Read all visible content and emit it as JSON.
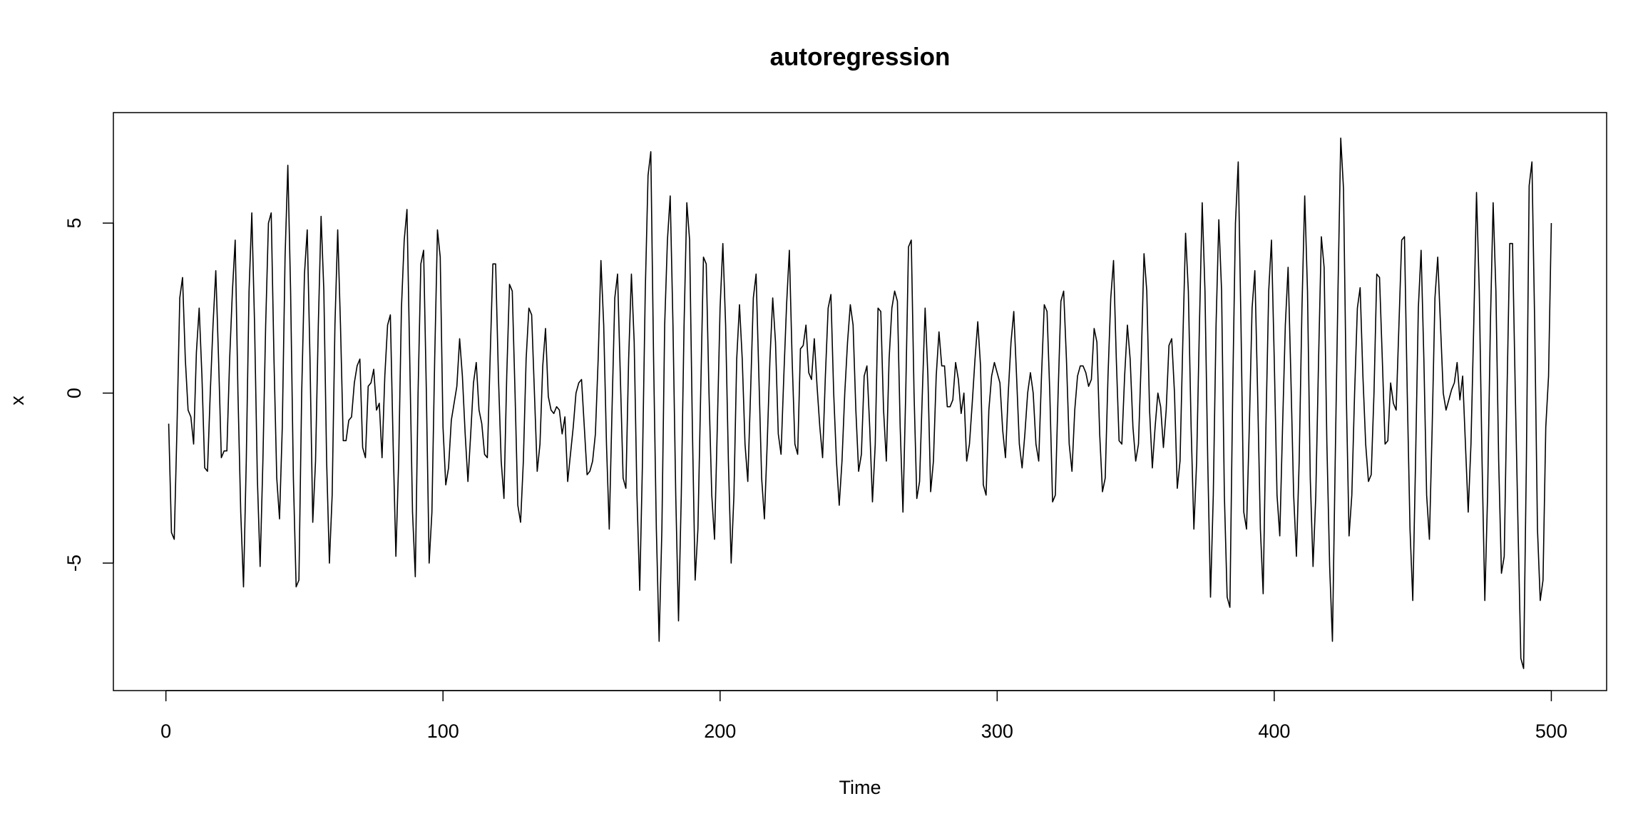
{
  "chart_data": {
    "type": "line",
    "title": "autoregression",
    "x_label": "Time",
    "y_label": "x",
    "xlim": [
      -18.96,
      519.96
    ],
    "ylim": [
      -8.75,
      8.25
    ],
    "xticks": [
      0,
      100,
      200,
      300,
      400,
      500
    ],
    "yticks": [
      -5,
      0,
      5
    ],
    "x": [
      1,
      2,
      3,
      4,
      5,
      6,
      7,
      8,
      9,
      10,
      11,
      12,
      13,
      14,
      15,
      16,
      17,
      18,
      19,
      20,
      21,
      22,
      23,
      24,
      25,
      26,
      27,
      28,
      29,
      30,
      31,
      32,
      33,
      34,
      35,
      36,
      37,
      38,
      39,
      40,
      41,
      42,
      43,
      44,
      45,
      46,
      47,
      48,
      49,
      50,
      51,
      52,
      53,
      54,
      55,
      56,
      57,
      58,
      59,
      60,
      61,
      62,
      63,
      64,
      65,
      66,
      67,
      68,
      69,
      70,
      71,
      72,
      73,
      74,
      75,
      76,
      77,
      78,
      79,
      80,
      81,
      82,
      83,
      84,
      85,
      86,
      87,
      88,
      89,
      90,
      91,
      92,
      93,
      94,
      95,
      96,
      97,
      98,
      99,
      100,
      101,
      102,
      103,
      104,
      105,
      106,
      107,
      108,
      109,
      110,
      111,
      112,
      113,
      114,
      115,
      116,
      117,
      118,
      119,
      120,
      121,
      122,
      123,
      124,
      125,
      126,
      127,
      128,
      129,
      130,
      131,
      132,
      133,
      134,
      135,
      136,
      137,
      138,
      139,
      140,
      141,
      142,
      143,
      144,
      145,
      146,
      147,
      148,
      149,
      150,
      151,
      152,
      153,
      154,
      155,
      156,
      157,
      158,
      159,
      160,
      161,
      162,
      163,
      164,
      165,
      166,
      167,
      168,
      169,
      170,
      171,
      172,
      173,
      174,
      175,
      176,
      177,
      178,
      179,
      180,
      181,
      182,
      183,
      184,
      185,
      186,
      187,
      188,
      189,
      190,
      191,
      192,
      193,
      194,
      195,
      196,
      197,
      198,
      199,
      200,
      201,
      202,
      203,
      204,
      205,
      206,
      207,
      208,
      209,
      210,
      211,
      212,
      213,
      214,
      215,
      216,
      217,
      218,
      219,
      220,
      221,
      222,
      223,
      224,
      225,
      226,
      227,
      228,
      229,
      230,
      231,
      232,
      233,
      234,
      235,
      236,
      237,
      238,
      239,
      240,
      241,
      242,
      243,
      244,
      245,
      246,
      247,
      248,
      249,
      250,
      251,
      252,
      253,
      254,
      255,
      256,
      257,
      258,
      259,
      260,
      261,
      262,
      263,
      264,
      265,
      266,
      267,
      268,
      269,
      270,
      271,
      272,
      273,
      274,
      275,
      276,
      277,
      278,
      279,
      280,
      281,
      282,
      283,
      284,
      285,
      286,
      287,
      288,
      289,
      290,
      291,
      292,
      293,
      294,
      295,
      296,
      297,
      298,
      299,
      300,
      301,
      302,
      303,
      304,
      305,
      306,
      307,
      308,
      309,
      310,
      311,
      312,
      313,
      314,
      315,
      316,
      317,
      318,
      319,
      320,
      321,
      322,
      323,
      324,
      325,
      326,
      327,
      328,
      329,
      330,
      331,
      332,
      333,
      334,
      335,
      336,
      337,
      338,
      339,
      340,
      341,
      342,
      343,
      344,
      345,
      346,
      347,
      348,
      349,
      350,
      351,
      352,
      353,
      354,
      355,
      356,
      357,
      358,
      359,
      360,
      361,
      362,
      363,
      364,
      365,
      366,
      367,
      368,
      369,
      370,
      371,
      372,
      373,
      374,
      375,
      376,
      377,
      378,
      379,
      380,
      381,
      382,
      383,
      384,
      385,
      386,
      387,
      388,
      389,
      390,
      391,
      392,
      393,
      394,
      395,
      396,
      397,
      398,
      399,
      400,
      401,
      402,
      403,
      404,
      405,
      406,
      407,
      408,
      409,
      410,
      411,
      412,
      413,
      414,
      415,
      416,
      417,
      418,
      419,
      420,
      421,
      422,
      423,
      424,
      425,
      426,
      427,
      428,
      429,
      430,
      431,
      432,
      433,
      434,
      435,
      436,
      437,
      438,
      439,
      440,
      441,
      442,
      443,
      444,
      445,
      446,
      447,
      448,
      449,
      450,
      451,
      452,
      453,
      454,
      455,
      456,
      457,
      458,
      459,
      460,
      461,
      462,
      463,
      464,
      465,
      466,
      467,
      468,
      469,
      470,
      471,
      472,
      473,
      474,
      475,
      476,
      477,
      478,
      479,
      480,
      481,
      482,
      483,
      484,
      485,
      486,
      487,
      488,
      489,
      490,
      491,
      492,
      493,
      494,
      495,
      496,
      497,
      498,
      499,
      500
    ],
    "series": [
      {
        "color": "#000000",
        "values": [
          -0.9,
          -4.1,
          -4.3,
          -1,
          2.8,
          3.4,
          1,
          -0.5,
          -0.7,
          -1.5,
          1.2,
          2.5,
          0.5,
          -2.2,
          -2.3,
          0,
          2,
          3.6,
          1,
          -1.9,
          -1.7,
          -1.7,
          1,
          3,
          4.5,
          0,
          -3.5,
          -5.7,
          -2,
          3,
          5.3,
          2,
          -2.5,
          -5.1,
          -2,
          2,
          5,
          5.3,
          1,
          -2.5,
          -3.7,
          -1,
          4,
          6.7,
          3,
          -2.5,
          -5.7,
          -5.5,
          0,
          3.5,
          4.8,
          1,
          -3.8,
          -2,
          2,
          5.2,
          3,
          -2,
          -5,
          -3,
          2,
          4.8,
          2,
          -1.4,
          -1.4,
          -0.8,
          -0.7,
          0.3,
          0.8,
          1,
          -1.6,
          -1.9,
          0.2,
          0.3,
          0.7,
          -0.5,
          -0.3,
          -1.9,
          0.5,
          2,
          2.3,
          -1.5,
          -4.8,
          -2,
          2.5,
          4.5,
          5.4,
          1,
          -3.5,
          -5.4,
          0,
          3.8,
          4.2,
          0,
          -5,
          -3.5,
          1,
          4.8,
          4,
          -1,
          -2.7,
          -2.2,
          -0.8,
          -0.3,
          0.2,
          1.6,
          0.5,
          -1.2,
          -2.6,
          -1.2,
          0.3,
          0.9,
          -0.5,
          -0.9,
          -1.8,
          -1.9,
          1,
          3.8,
          3.8,
          0.5,
          -2,
          -3.1,
          0.5,
          3.2,
          3,
          0,
          -3.3,
          -3.8,
          -2,
          1,
          2.5,
          2.3,
          0,
          -2.3,
          -1.5,
          0.8,
          1.9,
          -0.1,
          -0.5,
          -0.6,
          -0.4,
          -0.5,
          -1.2,
          -0.7,
          -2.6,
          -1.8,
          -1,
          0,
          0.3,
          0.4,
          -1,
          -2.4,
          -2.3,
          -2,
          -1.2,
          1,
          3.9,
          2,
          -1.5,
          -4,
          -0.5,
          2.8,
          3.5,
          0.5,
          -2.5,
          -2.8,
          1,
          3.5,
          1.5,
          -3,
          -5.8,
          -2,
          3,
          6.4,
          7.1,
          1,
          -4,
          -7.3,
          -4,
          2,
          4.5,
          5.8,
          2,
          -3,
          -6.7,
          -3,
          2,
          5.6,
          4.5,
          -1,
          -5.5,
          -4,
          0,
          4,
          3.8,
          0,
          -3,
          -4.3,
          -1,
          2.5,
          4.4,
          2,
          -2,
          -5,
          -3,
          1,
          2.6,
          1,
          -1.5,
          -2.6,
          0,
          2.8,
          3.5,
          0.5,
          -2.5,
          -3.7,
          -1.5,
          1,
          2.8,
          1.5,
          -1.2,
          -1.8,
          0.5,
          2.6,
          4.2,
          1,
          -1.5,
          -1.8,
          1.3,
          1.4,
          2,
          0.6,
          0.4,
          1.6,
          0.2,
          -1,
          -1.9,
          0.5,
          2.5,
          2.9,
          0,
          -2,
          -3.3,
          -2,
          0,
          1.5,
          2.6,
          2,
          -0.5,
          -2.3,
          -1.8,
          0.5,
          0.8,
          -1,
          -3.2,
          -1.5,
          2.5,
          2.4,
          -0.5,
          -2,
          1,
          2.5,
          3,
          2.7,
          -1,
          -3.5,
          0,
          4.3,
          4.5,
          0,
          -3.1,
          -2.6,
          0,
          2.5,
          0.5,
          -2.9,
          -2,
          0.5,
          1.8,
          0.8,
          0.8,
          -0.4,
          -0.4,
          -0.2,
          0.9,
          0.4,
          -0.6,
          0,
          -2,
          -1.5,
          -0.3,
          1,
          2.1,
          0.8,
          -2.7,
          -3,
          -0.5,
          0.5,
          0.9,
          0.6,
          0.3,
          -1.1,
          -1.9,
          0,
          1.5,
          2.4,
          0.5,
          -1.5,
          -2.2,
          -1.2,
          0,
          0.6,
          0,
          -1.5,
          -2,
          0.5,
          2.6,
          2.4,
          0,
          -3.2,
          -3,
          0,
          2.7,
          3,
          1,
          -1.5,
          -2.3,
          -0.5,
          0.5,
          0.8,
          0.8,
          0.6,
          0.2,
          0.4,
          1.9,
          1.5,
          -1.2,
          -2.9,
          -2.5,
          0.5,
          2.8,
          3.9,
          1,
          -1.4,
          -1.5,
          0.5,
          2,
          1,
          -1,
          -2,
          -1.5,
          1,
          4.1,
          3,
          -0.5,
          -2.2,
          -1,
          0,
          -0.4,
          -1.6,
          -0.5,
          1.4,
          1.6,
          0,
          -2.8,
          -2,
          1.5,
          4.7,
          3,
          -1,
          -4,
          -2,
          2,
          5.6,
          3,
          -2,
          -6,
          -3,
          2,
          5.1,
          3,
          -3,
          -6,
          -6.3,
          0,
          5,
          6.8,
          2,
          -3.5,
          -4,
          -1,
          2.5,
          3.6,
          0,
          -4,
          -5.9,
          -1,
          3,
          4.5,
          1,
          -3,
          -4.2,
          -1,
          2,
          3.7,
          0.5,
          -3,
          -4.8,
          -2,
          2.5,
          5.8,
          3,
          -2.5,
          -5.1,
          -3,
          1,
          4.6,
          3.7,
          -1.5,
          -5.1,
          -7.3,
          -2,
          3,
          7.5,
          6,
          0,
          -4.2,
          -3,
          0,
          2.5,
          3.1,
          0.5,
          -1.5,
          -2.6,
          -2.4,
          0,
          3.5,
          3.4,
          1,
          -1.5,
          -1.4,
          0.3,
          -0.3,
          -0.5,
          2,
          4.5,
          4.6,
          0,
          -4,
          -6.1,
          -2,
          2.5,
          4.2,
          1,
          -3,
          -4.3,
          -1,
          2.8,
          4,
          2,
          0,
          -0.5,
          -0.2,
          0.1,
          0.3,
          0.9,
          -0.2,
          0.5,
          -1.5,
          -3.5,
          -1.5,
          2,
          5.9,
          3,
          -2,
          -6.1,
          -3,
          2,
          5.6,
          3,
          -2,
          -5.3,
          -4.8,
          0,
          4.4,
          4.4,
          0,
          -4,
          -7.8,
          -8.1,
          -2,
          6.1,
          6.8,
          2,
          -4,
          -6.1,
          -5.5,
          -1,
          0.5,
          5
        ]
      }
    ]
  }
}
